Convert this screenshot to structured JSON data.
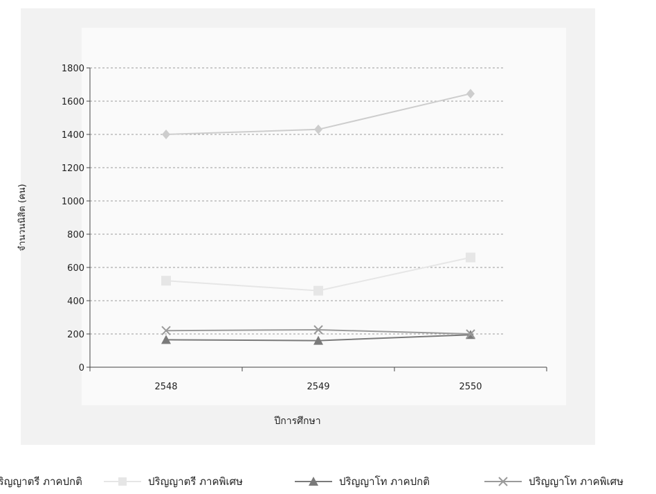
{
  "chart_data": {
    "type": "line",
    "title": "",
    "xlabel": "ปีการศึกษา",
    "ylabel": "จำนวนนิสิต (คน)",
    "categories": [
      "2548",
      "2549",
      "2550"
    ],
    "yticks": [
      "0",
      "200",
      "400",
      "600",
      "800",
      "1000",
      "1200",
      "1400",
      "1600",
      "1800"
    ],
    "ylim": [
      0,
      1800
    ],
    "grid": true,
    "legend_position": "bottom",
    "series": [
      {
        "name": "ปริญญาตรี ภาคปกติ",
        "values": [
          1400,
          1430,
          1645
        ],
        "marker": "diamond",
        "color": "#cdcdcd"
      },
      {
        "name": "ปริญญาตรี ภาคพิเศษ",
        "values": [
          520,
          460,
          660
        ],
        "marker": "square",
        "color": "#e6e6e6"
      },
      {
        "name": "ปริญญาโท ภาคปกติ",
        "values": [
          165,
          160,
          195
        ],
        "marker": "triangle",
        "color": "#7a7a7a"
      },
      {
        "name": "ปริญญาโท ภาคพิเศษ",
        "values": [
          220,
          225,
          200
        ],
        "marker": "x",
        "color": "#9a9a9a"
      }
    ]
  }
}
